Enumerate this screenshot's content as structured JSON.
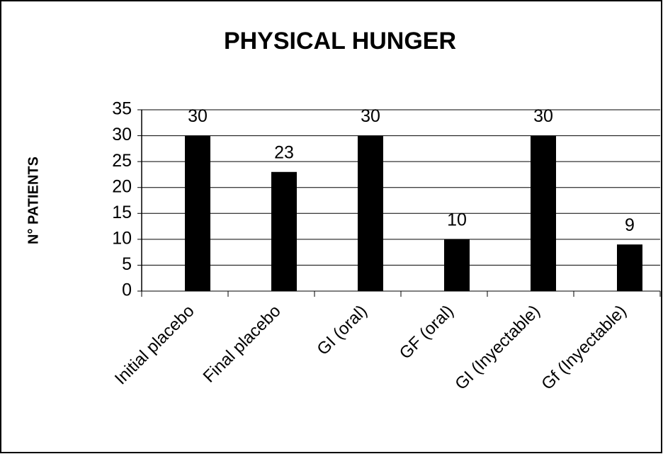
{
  "chart_data": {
    "type": "bar",
    "title": "PHYSICAL HUNGER",
    "y_label": "N° PATIENTS",
    "categories": [
      "Initial placebo",
      "Final placebo",
      "GI (oral)",
      "GF (oral)",
      "GI (Inyectable)",
      "Gf (Inyectable)"
    ],
    "values": [
      30,
      23,
      30,
      10,
      30,
      9
    ],
    "color": "#000000",
    "ylim": [
      0,
      35
    ],
    "yticks": [
      0,
      5,
      10,
      15,
      20,
      25,
      30,
      35
    ],
    "grid": true
  }
}
